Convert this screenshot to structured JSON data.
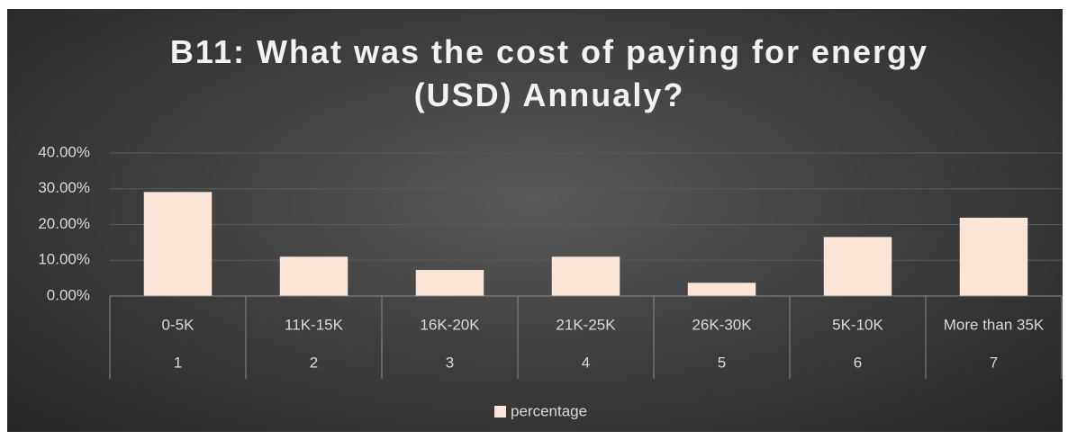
{
  "chart_data": {
    "type": "bar",
    "title": "B11: What was the cost of paying for energy (USD) Annualy?",
    "categories": [
      "0-5K",
      "11K-15K",
      "16K-20K",
      "21K-25K",
      "26K-30K",
      "5K-10K",
      "More than 35K"
    ],
    "category_numbers": [
      1,
      2,
      3,
      4,
      5,
      6,
      7
    ],
    "series": [
      {
        "name": "percentage",
        "color": "#fbe5d6",
        "values": [
          29.1,
          11.0,
          7.3,
          11.0,
          3.7,
          16.5,
          21.9
        ]
      }
    ],
    "ylim": [
      0,
      40
    ],
    "yticks": [
      {
        "value": 0,
        "label": "0.00%"
      },
      {
        "value": 10,
        "label": "10.00%"
      },
      {
        "value": 20,
        "label": "20.00%"
      },
      {
        "value": 30,
        "label": "30.00%"
      },
      {
        "value": 40,
        "label": "40.00%"
      }
    ],
    "grid": true,
    "legend": "bottom"
  }
}
